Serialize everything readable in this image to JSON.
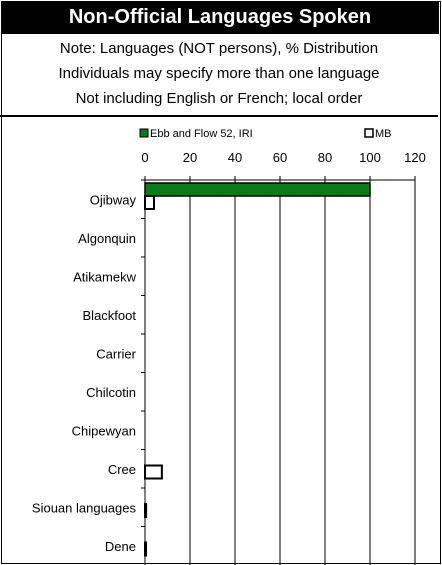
{
  "title": "Non-Official Languages Spoken",
  "notes": [
    "Note: Languages (NOT persons), % Distribution",
    "Individuals may specify more than one language",
    "Not including English or French; local order"
  ],
  "colors": {
    "series1": "#0a7a1a",
    "series2": "#ffffff",
    "title_bg": "#000000"
  },
  "chart_data": {
    "type": "bar",
    "orientation": "horizontal",
    "categories": [
      "Ojibway",
      "Algonquin",
      "Atikamekw",
      "Blackfoot",
      "Carrier",
      "Chilcotin",
      "Chipewyan",
      "Cree",
      "Siouan languages",
      "Dene"
    ],
    "series": [
      {
        "name": "Ebb and Flow 52, IRI",
        "values": [
          100,
          0,
          0,
          0,
          0,
          0,
          0,
          0,
          0,
          0
        ],
        "color": "#0a7a1a"
      },
      {
        "name": "MB",
        "values": [
          4,
          0,
          0,
          0,
          0,
          0,
          0,
          7.5,
          0.5,
          0.3
        ],
        "color": "#ffffff"
      }
    ],
    "xlim": [
      0,
      120
    ],
    "xticks": [
      0,
      20,
      40,
      60,
      80,
      100,
      120
    ],
    "grid": "vertical",
    "legend": "top",
    "xlabel": "",
    "ylabel": ""
  }
}
